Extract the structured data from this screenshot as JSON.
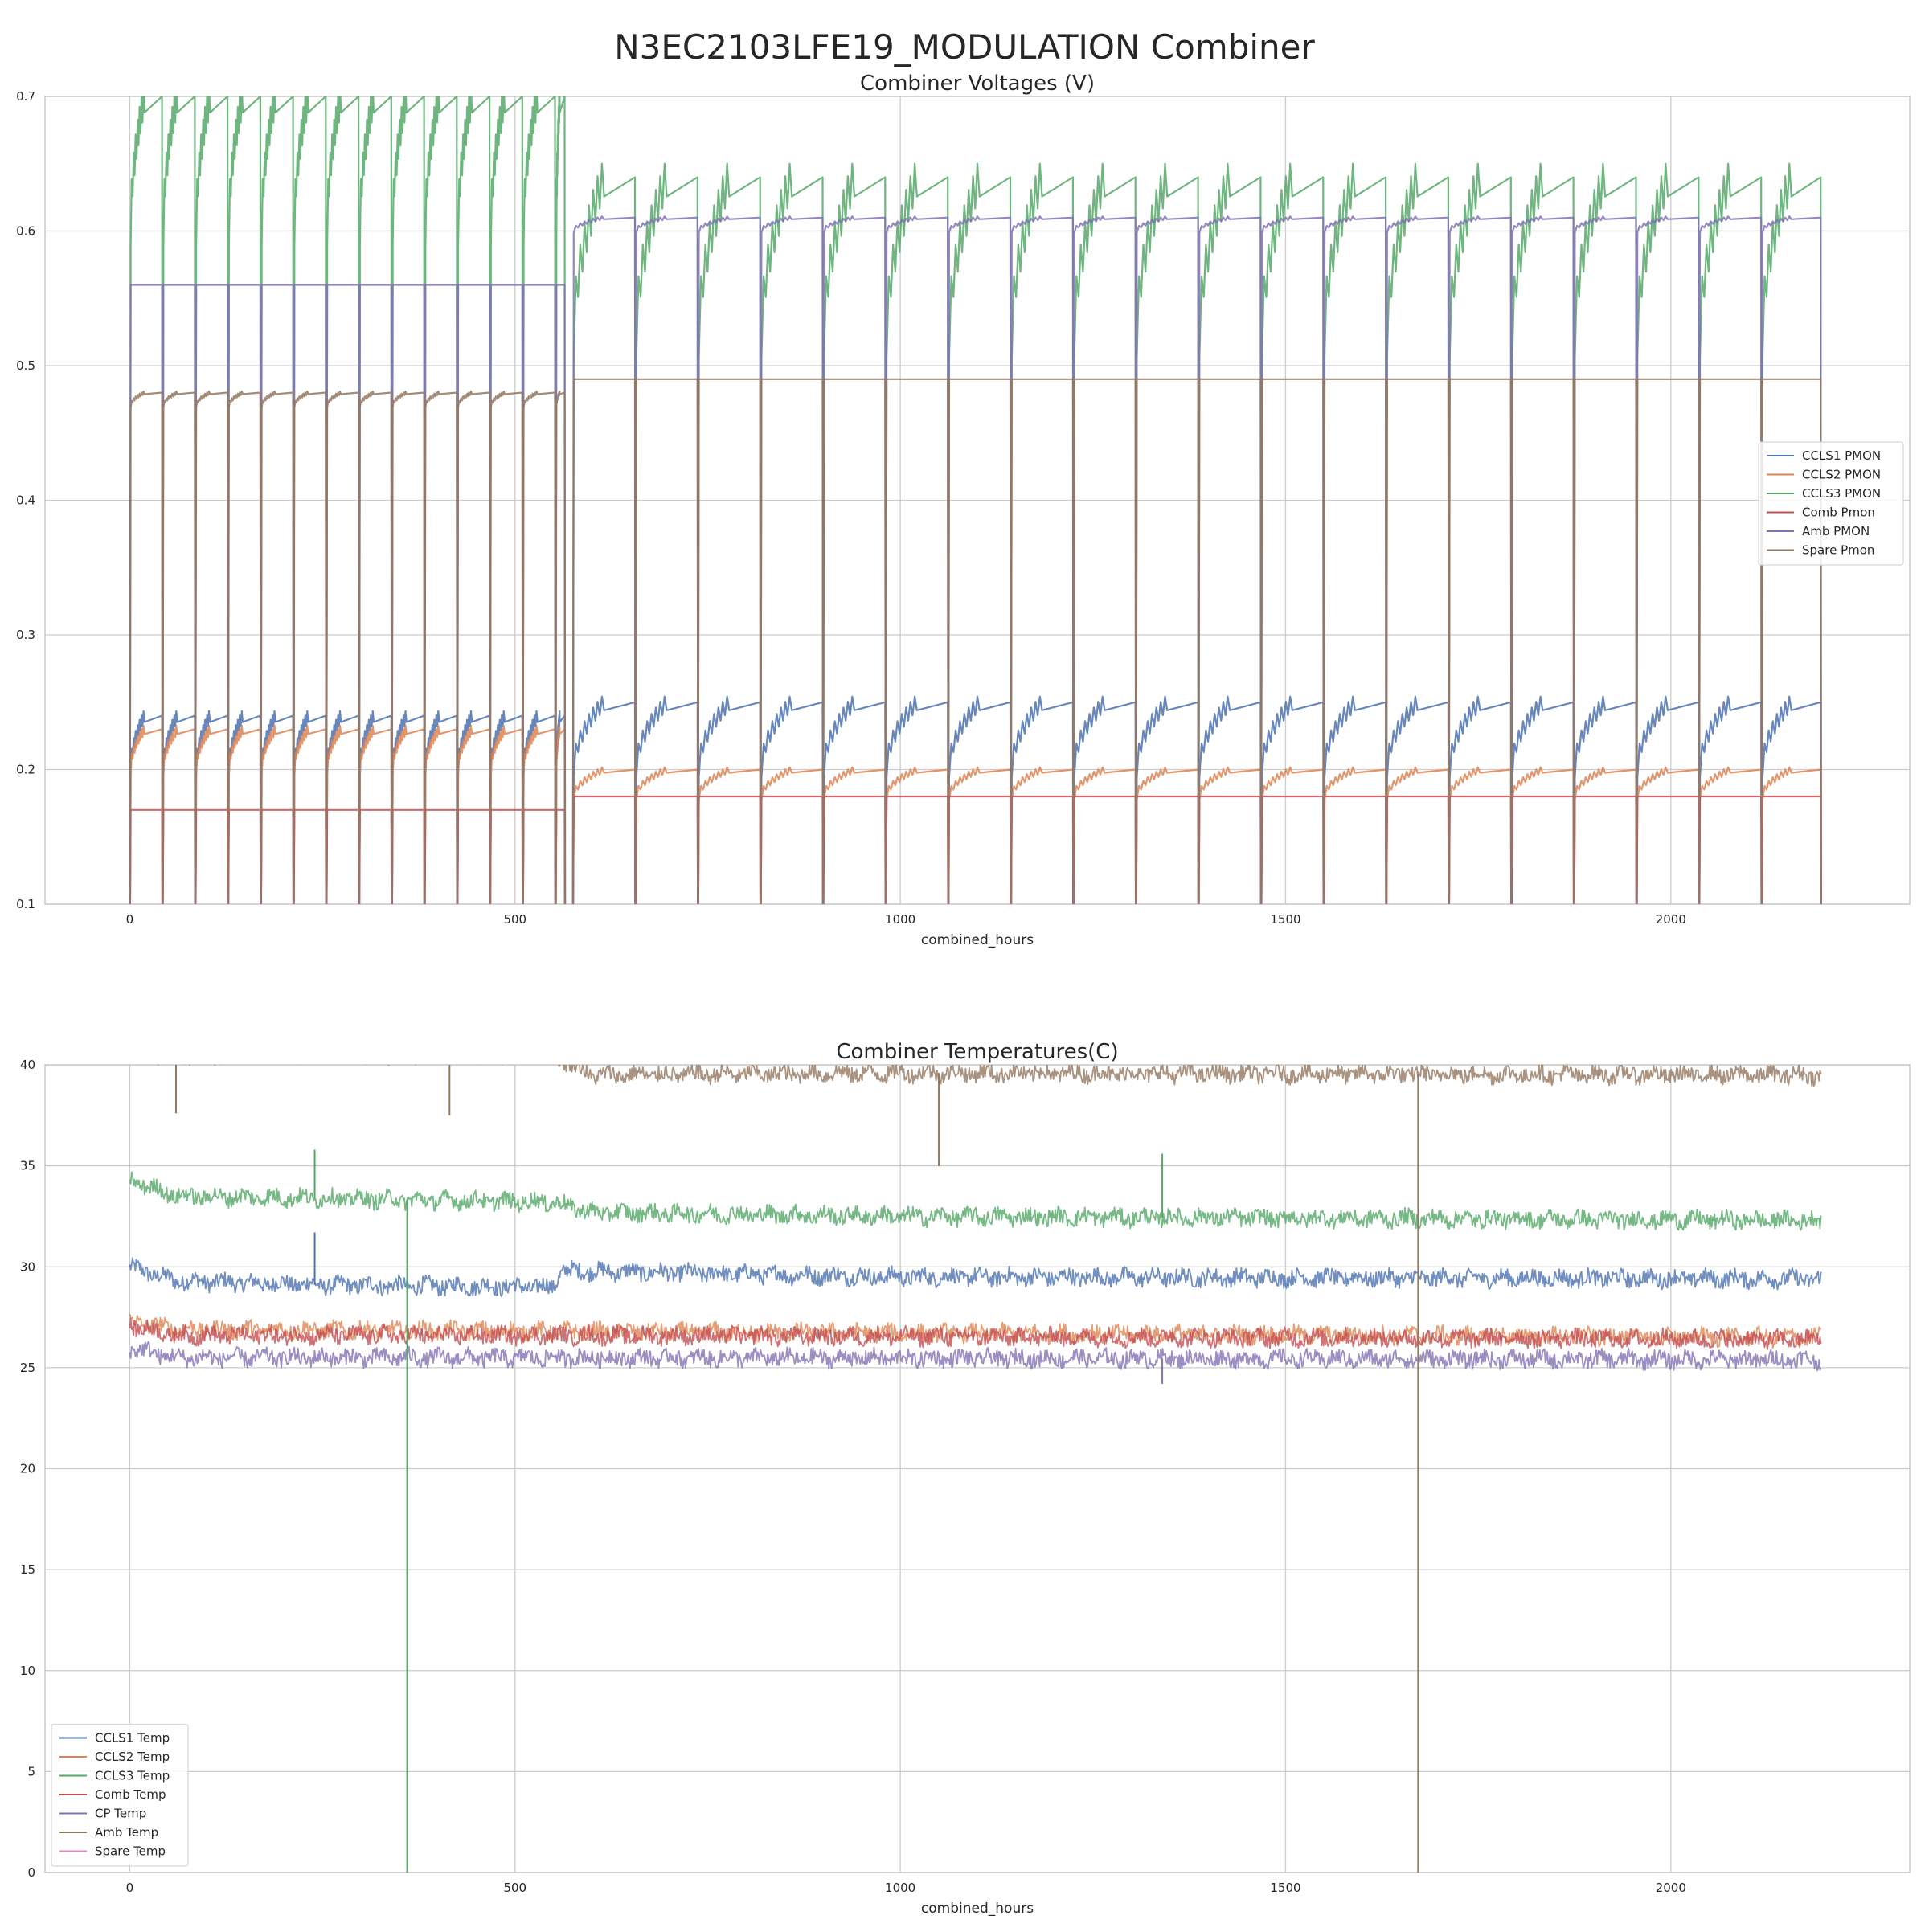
{
  "figure": {
    "suptitle": "N3EC2103LFE19_MODULATION Combiner"
  },
  "chart_data": [
    {
      "type": "line",
      "title": "Combiner Voltages (V)",
      "xlabel": "combined_hours",
      "ylabel": "",
      "xlim": [
        -110,
        2310
      ],
      "ylim": [
        0.1,
        0.7
      ],
      "xticks": [
        0,
        500,
        1000,
        1500,
        2000
      ],
      "xtick_labels": [
        "0",
        "500",
        "1000",
        "1500",
        "2000"
      ],
      "yticks": [
        0.1,
        0.2,
        0.3,
        0.4,
        0.5,
        0.6,
        0.7
      ],
      "ytick_labels": [
        "0.1",
        "0.2",
        "0.3",
        "0.4",
        "0.5",
        "0.6",
        "0.7"
      ],
      "grid": true,
      "legend_position": "center-right",
      "duty_cycle": {
        "phase1_period_hours": 42.5,
        "phase1_end_hours": 565,
        "phase2_start_hours": 575,
        "phase2_period_hours": 81.2,
        "end_hours": 2195,
        "ramp_fraction_phase1": 0.45,
        "ramp_fraction_phase2": 0.5
      },
      "series": [
        {
          "name": "CCLS1 PMON",
          "color": "#4c72b0",
          "phase1": [
            0.2,
            0.24
          ],
          "phase2": [
            0.2,
            0.25
          ]
        },
        {
          "name": "CCLS2 PMON",
          "color": "#dd8452",
          "phase1": [
            0.2,
            0.23
          ],
          "phase2": [
            0.18,
            0.2
          ]
        },
        {
          "name": "CCLS3 PMON",
          "color": "#55a868",
          "phase1": [
            0.6,
            0.7
          ],
          "phase2": [
            0.52,
            0.64
          ]
        },
        {
          "name": "Comb Pmon",
          "color": "#c44e52",
          "phase1": [
            0.17,
            0.17
          ],
          "phase2": [
            0.18,
            0.18
          ]
        },
        {
          "name": "Amb PMON",
          "color": "#8172b3",
          "phase1": [
            0.56,
            0.56
          ],
          "phase2": [
            0.6,
            0.61
          ]
        },
        {
          "name": "Spare Pmon",
          "color": "#937860",
          "phase1": [
            0.47,
            0.48
          ],
          "phase2": [
            0.49,
            0.49
          ]
        }
      ]
    },
    {
      "type": "line",
      "title": "Combiner Temperatures(C)",
      "xlabel": "combined_hours",
      "ylabel": "",
      "xlim": [
        -110,
        2310
      ],
      "ylim": [
        0,
        40
      ],
      "xticks": [
        0,
        500,
        1000,
        1500,
        2000
      ],
      "xtick_labels": [
        "0",
        "500",
        "1000",
        "1500",
        "2000"
      ],
      "yticks": [
        0,
        5,
        10,
        15,
        20,
        25,
        30,
        35,
        40
      ],
      "ytick_labels": [
        "0",
        "5",
        "10",
        "15",
        "20",
        "25",
        "30",
        "35",
        "40"
      ],
      "grid": true,
      "legend_position": "bottom-left",
      "x_range": [
        0,
        2195
      ],
      "series": [
        {
          "name": "CCLS1 Temp",
          "color": "#4c72b0",
          "x": [
            0,
            60,
            250,
            550,
            560,
            1000,
            2195
          ],
          "y": [
            30,
            29.3,
            29.1,
            29.0,
            29.8,
            29.5,
            29.4
          ]
        },
        {
          "name": "CCLS2 Temp",
          "color": "#dd8452",
          "x": [
            0,
            60,
            550,
            2195
          ],
          "y": [
            27.3,
            26.9,
            26.8,
            26.5
          ]
        },
        {
          "name": "CCLS3 Temp",
          "color": "#55a868",
          "x": [
            0,
            60,
            550,
            600,
            1000,
            2195
          ],
          "y": [
            34.3,
            33.5,
            33.2,
            32.7,
            32.5,
            32.3
          ]
        },
        {
          "name": "Comb Temp",
          "color": "#c44e52",
          "x": [
            0,
            60,
            550,
            2195
          ],
          "y": [
            27.1,
            26.6,
            26.6,
            26.4
          ]
        },
        {
          "name": "CP Temp",
          "color": "#8172b3",
          "x": [
            0,
            60,
            550,
            2195
          ],
          "y": [
            26.0,
            25.5,
            25.5,
            25.4
          ]
        },
        {
          "name": "Amb Temp",
          "color": "#937860",
          "x": [
            0,
            550,
            600,
            1000,
            2195
          ],
          "y": [
            40.5,
            40.5,
            39.5,
            39.6,
            39.5
          ]
        },
        {
          "name": "Spare Temp",
          "color": "#da8bc3",
          "x": [],
          "y": []
        }
      ],
      "spikes": [
        {
          "series": "CCLS3 Temp",
          "x": 360,
          "y": 0
        },
        {
          "series": "Amb Temp",
          "x": 1672,
          "y": 0
        },
        {
          "series": "CCLS1 Temp",
          "x": 240,
          "y": 31.7
        },
        {
          "series": "CCLS3 Temp",
          "x": 240,
          "y": 35.8
        },
        {
          "series": "CCLS3 Temp",
          "x": 1340,
          "y": 35.6
        },
        {
          "series": "CP Temp",
          "x": 1340,
          "y": 24.2
        },
        {
          "series": "Amb Temp",
          "x": 1050,
          "y": 35
        },
        {
          "series": "Amb Temp",
          "x": 60,
          "y": 37.6
        },
        {
          "series": "Amb Temp",
          "x": 415,
          "y": 37.5
        }
      ]
    }
  ]
}
